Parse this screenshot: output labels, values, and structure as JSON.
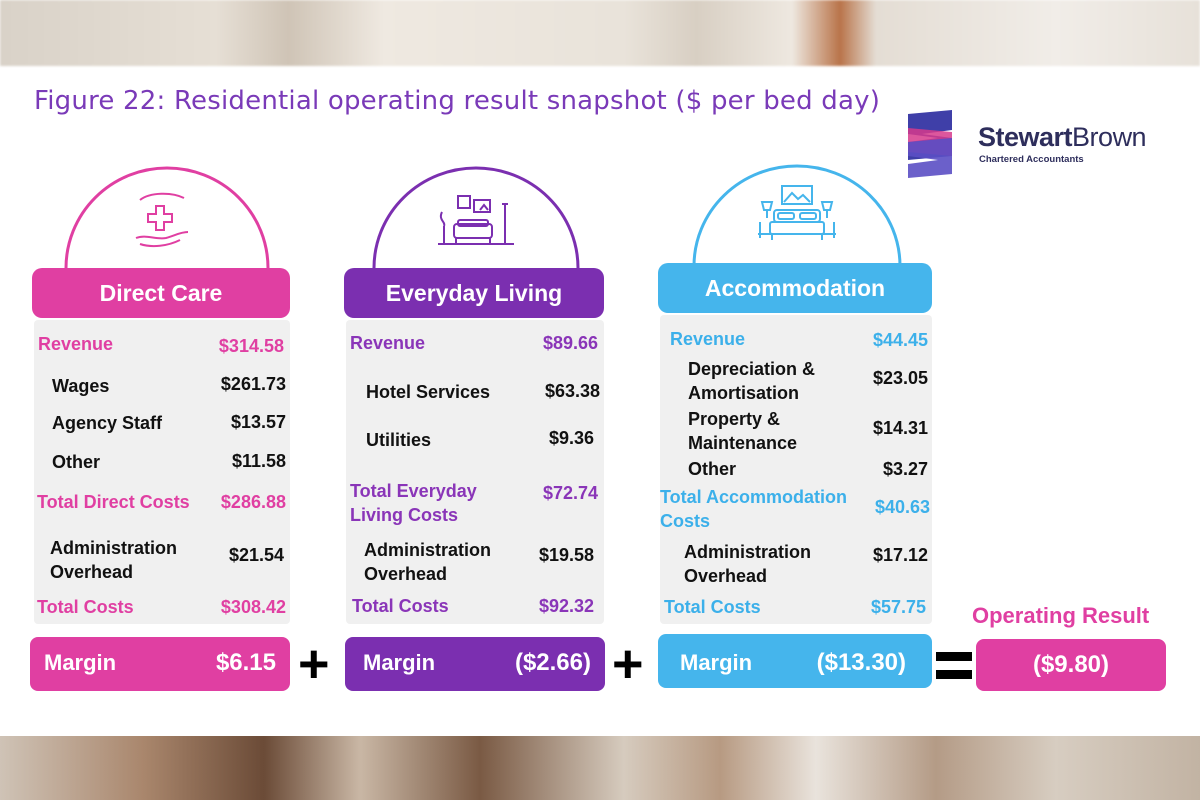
{
  "figure_title": "Figure 22: Residential operating result snapshot ($ per bed day)",
  "brand": {
    "name_bold": "Stewart",
    "name_light": "Brown",
    "subtitle": "Chartered Accountants"
  },
  "colors": {
    "direct_care": "#e03fa2",
    "everyday_living": "#7b2fb0",
    "accommodation": "#45b5ec"
  },
  "icons": {
    "direct_care": "care-hands-cross-icon",
    "everyday_living": "living-room-icon",
    "accommodation": "bed-icon"
  },
  "direct_care": {
    "title": "Direct Care",
    "revenue_label": "Revenue",
    "revenue": "$314.58",
    "wages_label": "Wages",
    "wages": "$261.73",
    "agency_label": "Agency Staff",
    "agency": "$13.57",
    "other_label": "Other",
    "other": "$11.58",
    "total_direct_label": "Total Direct Costs",
    "total_direct": "$286.88",
    "admin_label_1": "Administration",
    "admin_label_2": "Overhead",
    "admin": "$21.54",
    "total_label": "Total Costs",
    "total": "$308.42",
    "margin_label": "Margin",
    "margin": "$6.15"
  },
  "everyday_living": {
    "title": "Everyday Living",
    "revenue_label": "Revenue",
    "revenue": "$89.66",
    "hotel_label": "Hotel Services",
    "hotel": "$63.38",
    "utilities_label": "Utilities",
    "utilities": "$9.36",
    "total_el_label_1": "Total Everyday",
    "total_el_label_2": "Living Costs",
    "total_el": "$72.74",
    "admin_label_1": "Administration",
    "admin_label_2": "Overhead",
    "admin": "$19.58",
    "total_label": "Total Costs",
    "total": "$92.32",
    "margin_label": "Margin",
    "margin": "($2.66)"
  },
  "accommodation": {
    "title": "Accommodation",
    "revenue_label": "Revenue",
    "revenue": "$44.45",
    "dep_label_1": "Depreciation &",
    "dep_label_2": "Amortisation",
    "dep": "$23.05",
    "prop_label_1": "Property &",
    "prop_label_2": "Maintenance",
    "prop": "$14.31",
    "other_label": "Other",
    "other": "$3.27",
    "total_acc_label_1": "Total Accommodation",
    "total_acc_label_2": "Costs",
    "total_acc": "$40.63",
    "admin_label_1": "Administration",
    "admin_label_2": "Overhead",
    "admin": "$17.12",
    "total_label": "Total Costs",
    "total": "$57.75",
    "margin_label": "Margin",
    "margin": "($13.30)"
  },
  "operators": {
    "plus": "+",
    "equals": "="
  },
  "operating_result": {
    "label": "Operating Result",
    "value": "($9.80)"
  }
}
